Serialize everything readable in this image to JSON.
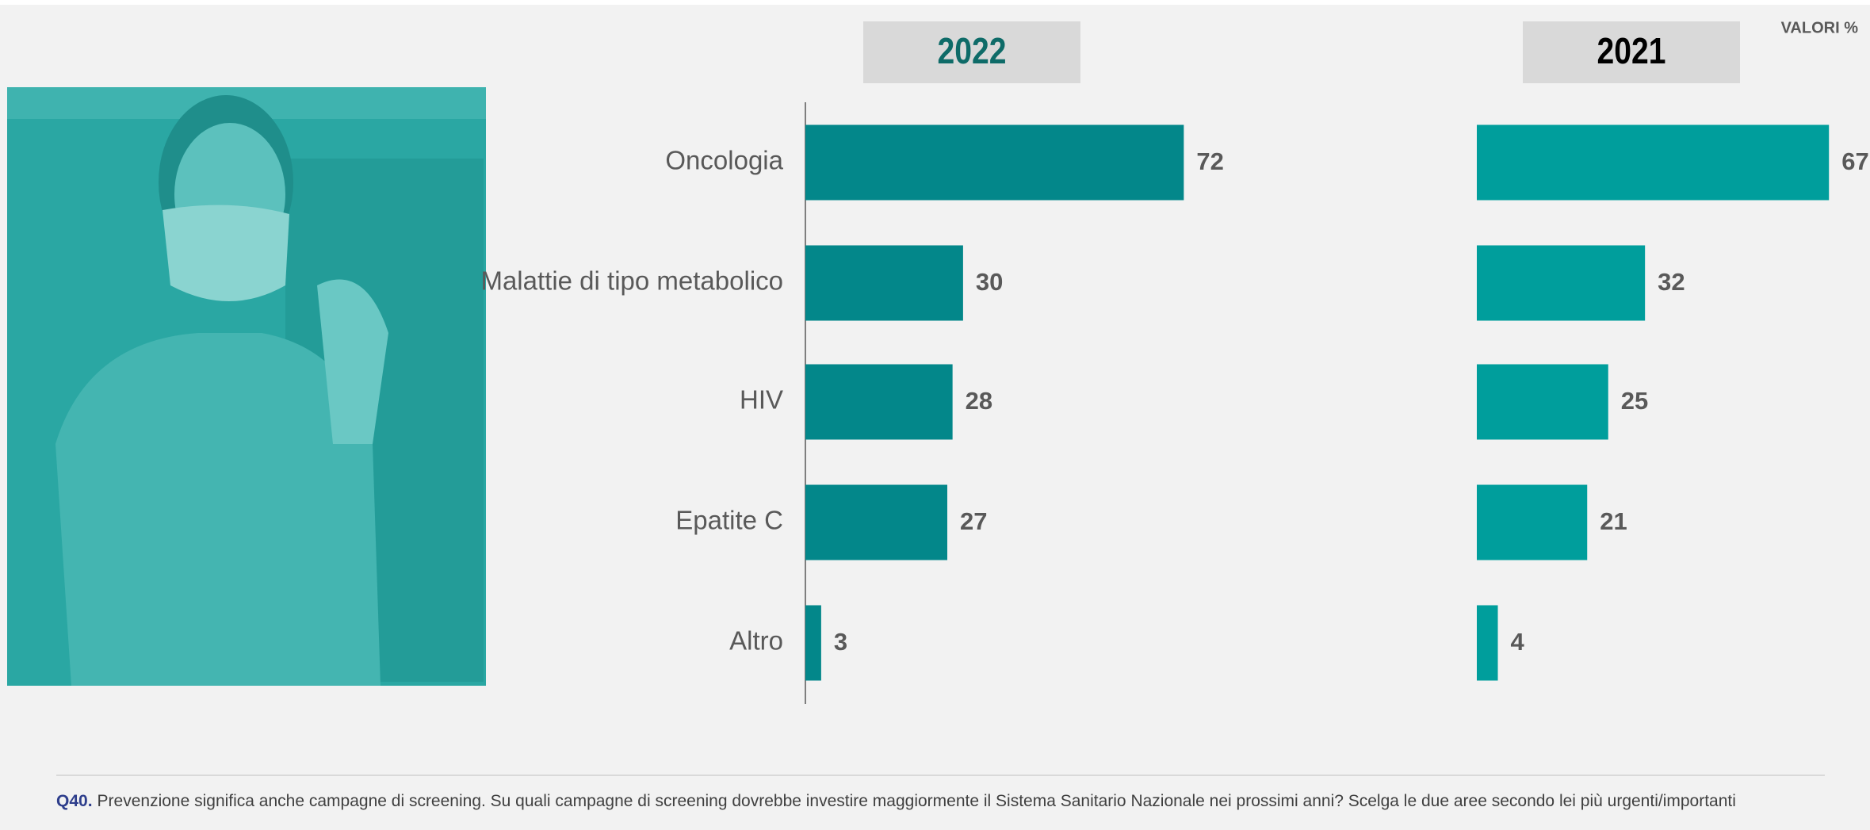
{
  "note": "VALORI %",
  "chart_data": [
    {
      "type": "bar",
      "orientation": "horizontal",
      "title": "2022",
      "categories": [
        "Oncologia",
        "Malattie di tipo metabolico",
        "HIV",
        "Epatite C",
        "Altro"
      ],
      "values": [
        72,
        30,
        28,
        27,
        3
      ],
      "color": "#03878a",
      "title_color": "#0e6b68"
    },
    {
      "type": "bar",
      "orientation": "horizontal",
      "title": "2021",
      "values": [
        67,
        32,
        25,
        21,
        4
      ],
      "color": "#009e9c",
      "title_color": "#000000"
    }
  ],
  "footnote": {
    "label": "Q40.",
    "text": "Prevenzione significa anche campagne di screening. Su quali campagne di screening dovrebbe investire maggiormente il Sistema Sanitario Nazionale nei prossimi anni? Scelga le due aree secondo lei più urgenti/importanti"
  }
}
